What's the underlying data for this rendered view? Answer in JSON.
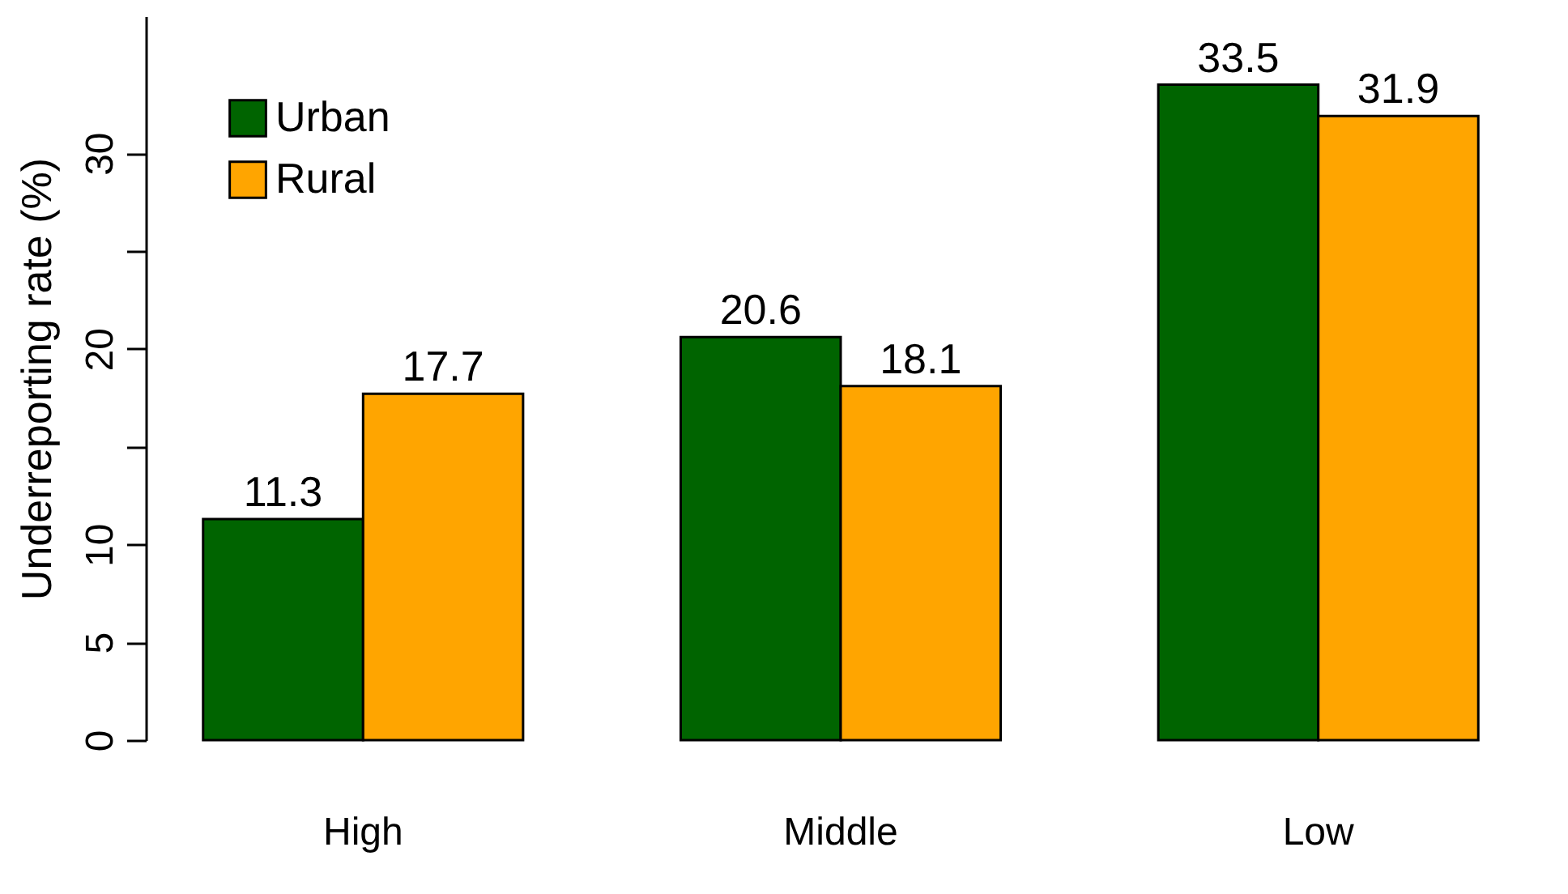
{
  "chart_data": {
    "type": "bar",
    "ylabel": "Underreporting rate (%)",
    "categories": [
      "High",
      "Middle",
      "Low"
    ],
    "series": [
      {
        "name": "Urban",
        "color": "#006400",
        "values": [
          11.3,
          20.6,
          33.5
        ]
      },
      {
        "name": "Rural",
        "color": "#ffa500",
        "values": [
          17.7,
          18.1,
          31.9
        ]
      }
    ],
    "ylim": [
      0,
      37
    ],
    "yticks": [
      0,
      5,
      10,
      {
        "value": 15,
        "label": null
      },
      20,
      {
        "value": 25,
        "label": null
      },
      30
    ],
    "data_labels": true,
    "grid": false,
    "legend": "top left"
  }
}
